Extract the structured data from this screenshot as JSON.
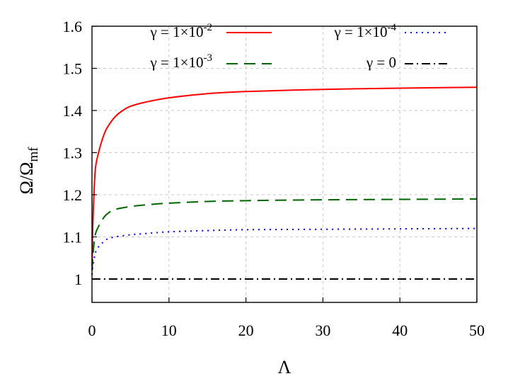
{
  "chart_data": {
    "type": "line",
    "xlabel": "Λ",
    "ylabel": "Ω/Ω_mf",
    "ylabel_parts": {
      "main": "Ω/Ω",
      "sub": "mf"
    },
    "xlim": [
      0,
      50
    ],
    "ylim": [
      1.0,
      1.6
    ],
    "x_ticks": [
      "0",
      "10",
      "20",
      "30",
      "40",
      "50"
    ],
    "y_ticks": [
      "1",
      "1.1",
      "1.2",
      "1.3",
      "1.4",
      "1.5",
      "1.6"
    ],
    "grid": true,
    "legend_position": "top",
    "series": [
      {
        "name": "γ = 1×10-2",
        "label_main": "γ = 1×10",
        "label_exp": "-2",
        "color": "#ff0000",
        "style": "solid",
        "x": [
          0.02,
          0.1,
          0.3,
          0.5,
          1,
          1.5,
          2,
          3,
          4,
          5,
          7,
          10,
          15,
          20,
          30,
          40,
          50
        ],
        "y": [
          1.03,
          1.12,
          1.22,
          1.27,
          1.31,
          1.34,
          1.36,
          1.385,
          1.4,
          1.41,
          1.42,
          1.43,
          1.44,
          1.445,
          1.45,
          1.453,
          1.455
        ]
      },
      {
        "name": "γ = 1×10-3",
        "label_main": "γ = 1×10",
        "label_exp": "-3",
        "color": "#006400",
        "style": "dashed",
        "x": [
          0.02,
          0.1,
          0.3,
          0.5,
          1,
          1.5,
          2,
          3,
          5,
          7,
          10,
          15,
          20,
          30,
          40,
          50
        ],
        "y": [
          1.02,
          1.05,
          1.09,
          1.11,
          1.13,
          1.145,
          1.155,
          1.165,
          1.172,
          1.176,
          1.18,
          1.184,
          1.186,
          1.188,
          1.189,
          1.19
        ]
      },
      {
        "name": "γ = 1×10-4",
        "label_main": "γ = 1×10",
        "label_exp": "-4",
        "color": "#0000ff",
        "style": "dotted",
        "x": [
          0.02,
          0.1,
          0.3,
          0.5,
          1,
          1.5,
          2,
          3,
          5,
          7,
          10,
          15,
          20,
          30,
          40,
          50
        ],
        "y": [
          1.01,
          1.03,
          1.05,
          1.065,
          1.08,
          1.088,
          1.095,
          1.1,
          1.105,
          1.108,
          1.112,
          1.115,
          1.117,
          1.118,
          1.119,
          1.12
        ]
      },
      {
        "name": "γ = 0",
        "label_main": "γ = 0",
        "label_exp": "",
        "color": "#000000",
        "style": "dashdot",
        "x": [
          0,
          50
        ],
        "y": [
          1.0,
          1.0
        ]
      }
    ]
  }
}
